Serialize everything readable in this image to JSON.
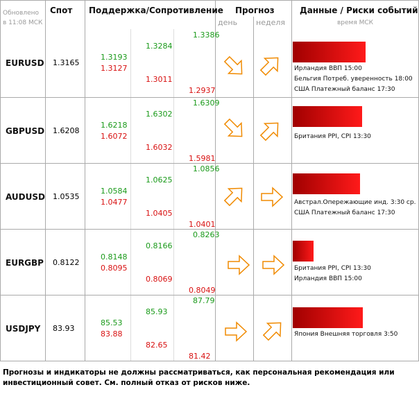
{
  "header": {
    "updated": "Обновлено",
    "updated_time": "в 11:08 МСК",
    "spot": "Спот",
    "levels": "Поддержка/Сопротивление",
    "forecast": "Прогноз",
    "day": "день",
    "week": "неделя",
    "events": "Данные / Риски событий",
    "events_time": "время МСК"
  },
  "rows": [
    {
      "pair": "EURUSD",
      "spot": "1.3165",
      "levels": {
        "r1": "1.3193",
        "s1": "1.3127",
        "r2": "1.3284",
        "s2": "1.3011",
        "r3": "1.3386",
        "s3": "1.2937"
      },
      "events": [
        "Ирландия ВВП 15:00",
        "Бельгия Потреб. уверенность 18:00",
        "США Платежный баланс 17:30"
      ]
    },
    {
      "pair": "GBPUSD",
      "spot": "1.6208",
      "levels": {
        "r1": "1.6218",
        "s1": "1.6072",
        "r2": "1.6302",
        "s2": "1.6032",
        "r3": "1.6309",
        "s3": "1.5981"
      },
      "events": [
        "Британия PPI, CPI 13:30"
      ]
    },
    {
      "pair": "AUDUSD",
      "spot": "1.0535",
      "levels": {
        "r1": "1.0584",
        "s1": "1.0477",
        "r2": "1.0625",
        "s2": "1.0405",
        "r3": "1.0856",
        "s3": "1.0401"
      },
      "events": [
        "Австрал.Опережающие инд. 3:30 ср.",
        "США Платежный баланс 17:30"
      ]
    },
    {
      "pair": "EURGBP",
      "spot": "0.8122",
      "levels": {
        "r1": "0.8148",
        "s1": "0.8095",
        "r2": "0.8166",
        "s2": "0.8069",
        "r3": "0.8263",
        "s3": "0.8049"
      },
      "events": [
        "Британия PPI, CPI 13:30",
        "Ирландия ВВП 15:00"
      ]
    },
    {
      "pair": "USDJPY",
      "spot": "83.93",
      "levels": {
        "r1": "85.53",
        "s1": "83.88",
        "r2": "85.93",
        "s2": "82.65",
        "r3": "87.79",
        "s3": "81.42"
      },
      "events": [
        "Япония Внешняя торговля 3:50"
      ]
    }
  ],
  "disclaimer": "Прогнозы и индикаторы не должны рассматриваться, как персональная рекомендация или инвестиционный совет. См. полный отказ от рисков ниже."
}
